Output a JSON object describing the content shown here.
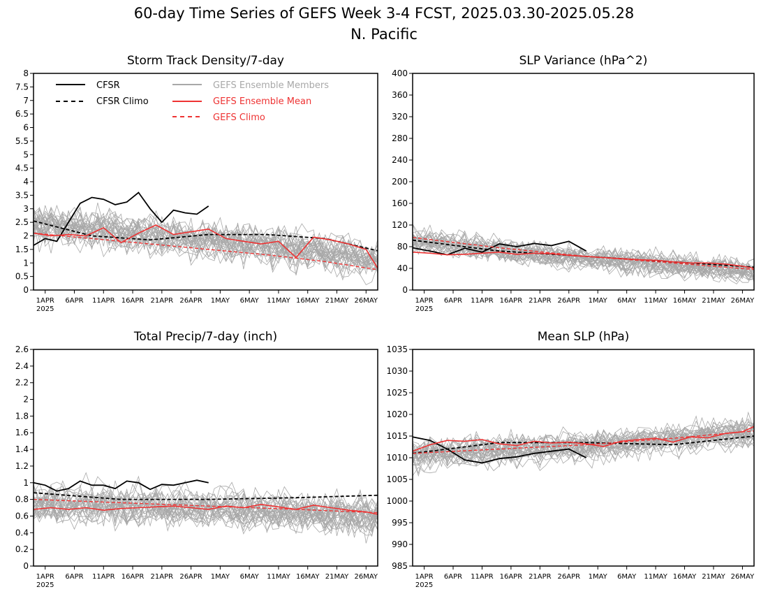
{
  "figure": {
    "title": "60-day Time Series of GEFS Week 3-4 FCST, 2025.03.30-2025.05.28",
    "subtitle": "N. Pacific"
  },
  "colors": {
    "cfsr": "#000000",
    "members": "#a8a8a8",
    "ens_mean": "#ee3333",
    "gefs_climo": "#ee3333"
  },
  "legend": {
    "cfsr": "CFSR",
    "cfsr_climo": "CFSR Climo",
    "members": "GEFS Ensemble Members",
    "ens_mean": "GEFS Ensemble Mean",
    "gefs_climo": "GEFS Climo"
  },
  "x_axis": {
    "ticks": [
      {
        "day": 2,
        "label": "1APR"
      },
      {
        "day": 7,
        "label": "6APR"
      },
      {
        "day": 12,
        "label": "11APR"
      },
      {
        "day": 17,
        "label": "16APR"
      },
      {
        "day": 22,
        "label": "21APR"
      },
      {
        "day": 27,
        "label": "26APR"
      },
      {
        "day": 32,
        "label": "1MAY"
      },
      {
        "day": 37,
        "label": "6MAY"
      },
      {
        "day": 42,
        "label": "11MAY"
      },
      {
        "day": 47,
        "label": "16MAY"
      },
      {
        "day": 52,
        "label": "21MAY"
      },
      {
        "day": 57,
        "label": "26MAY"
      }
    ],
    "year_label": "2025"
  },
  "chart_data": [
    {
      "type": "line",
      "title": "Storm Track Density/7-day",
      "ylim": [
        0,
        8
      ],
      "yticks": [
        "0",
        "0.5",
        "1",
        "1.5",
        "2",
        "2.5",
        "3",
        "3.5",
        "4",
        "4.5",
        "5",
        "5.5",
        "6",
        "6.5",
        "7",
        "7.5",
        "8"
      ],
      "x_range": [
        "2025-03-30",
        "2025-05-28"
      ],
      "member_band": {
        "center": 2.0,
        "spread": 0.9
      },
      "series": [
        {
          "name": "CFSR",
          "x_days": [
            0,
            2,
            4,
            6,
            8,
            10,
            12,
            14,
            16,
            18,
            20,
            22,
            24,
            26,
            28,
            30
          ],
          "values": [
            1.65,
            1.9,
            1.8,
            2.5,
            3.2,
            3.42,
            3.35,
            3.15,
            3.25,
            3.6,
            3.0,
            2.5,
            2.95,
            2.85,
            2.8,
            3.1
          ]
        },
        {
          "name": "CFSR Climo",
          "x_days": [
            0,
            10,
            20,
            30,
            40,
            50,
            59
          ],
          "values": [
            2.55,
            2.0,
            1.85,
            2.05,
            2.05,
            1.9,
            1.45
          ]
        },
        {
          "name": "GEFS Ensemble Mean",
          "x_days": [
            0,
            3,
            6,
            9,
            12,
            15,
            18,
            21,
            24,
            27,
            30,
            33,
            36,
            39,
            42,
            45,
            48,
            51,
            54,
            57,
            59
          ],
          "values": [
            2.1,
            2.0,
            2.05,
            2.0,
            2.3,
            1.75,
            2.1,
            2.4,
            2.05,
            2.15,
            2.25,
            1.9,
            1.8,
            1.7,
            1.8,
            1.2,
            1.95,
            1.85,
            1.7,
            1.5,
            0.8
          ]
        },
        {
          "name": "GEFS Climo",
          "x_days": [
            0,
            10,
            20,
            30,
            40,
            50,
            59
          ],
          "values": [
            2.1,
            1.9,
            1.7,
            1.5,
            1.3,
            1.05,
            0.75
          ]
        }
      ]
    },
    {
      "type": "line",
      "title": "SLP Variance (hPa^2)",
      "ylim": [
        0,
        400
      ],
      "yticks": [
        "0",
        "40",
        "80",
        "120",
        "160",
        "200",
        "240",
        "280",
        "320",
        "360",
        "400"
      ],
      "x_range": [
        "2025-03-30",
        "2025-05-28"
      ],
      "member_band": {
        "center": 60,
        "spread": 30
      },
      "series": [
        {
          "name": "CFSR",
          "x_days": [
            0,
            3,
            6,
            9,
            12,
            15,
            18,
            21,
            24,
            27,
            30
          ],
          "values": [
            78,
            72,
            65,
            77,
            70,
            85,
            80,
            86,
            82,
            90,
            72
          ]
        },
        {
          "name": "CFSR Climo",
          "x_days": [
            0,
            15,
            30,
            45,
            59
          ],
          "values": [
            92,
            72,
            62,
            52,
            42
          ]
        },
        {
          "name": "GEFS Ensemble Mean",
          "x_days": [
            0,
            3,
            6,
            9,
            12,
            15,
            18,
            21,
            24,
            27,
            30,
            33,
            36,
            39,
            42,
            45,
            48,
            51,
            54,
            57,
            59
          ],
          "values": [
            70,
            68,
            65,
            66,
            68,
            70,
            66,
            68,
            67,
            64,
            62,
            60,
            58,
            56,
            55,
            52,
            50,
            50,
            48,
            44,
            40
          ]
        },
        {
          "name": "GEFS Climo",
          "x_days": [
            0,
            15,
            30,
            45,
            59
          ],
          "values": [
            97,
            78,
            62,
            50,
            38
          ]
        }
      ]
    },
    {
      "type": "line",
      "title": "Total Precip/7-day (inch)",
      "ylim": [
        0,
        2.6
      ],
      "yticks": [
        "0",
        "0.2",
        "0.4",
        "0.6",
        "0.8",
        "1",
        "1.2",
        "1.4",
        "1.6",
        "1.8",
        "2",
        "2.2",
        "2.4",
        "2.6"
      ],
      "x_range": [
        "2025-03-30",
        "2025-05-28"
      ],
      "member_band": {
        "center": 0.68,
        "spread": 0.3
      },
      "series": [
        {
          "name": "CFSR",
          "x_days": [
            0,
            2,
            4,
            6,
            8,
            10,
            12,
            14,
            16,
            18,
            20,
            22,
            24,
            26,
            28,
            30
          ],
          "values": [
            1.0,
            0.97,
            0.9,
            0.93,
            1.02,
            0.97,
            0.97,
            0.93,
            1.02,
            1.0,
            0.92,
            0.98,
            0.97,
            1.0,
            1.03,
            1.0
          ]
        },
        {
          "name": "CFSR Climo",
          "x_days": [
            0,
            15,
            30,
            45,
            59
          ],
          "values": [
            0.88,
            0.8,
            0.8,
            0.82,
            0.85
          ]
        },
        {
          "name": "GEFS Ensemble Mean",
          "x_days": [
            0,
            3,
            6,
            9,
            12,
            15,
            18,
            21,
            24,
            27,
            30,
            33,
            36,
            39,
            42,
            45,
            48,
            51,
            54,
            57,
            59
          ],
          "values": [
            0.68,
            0.7,
            0.68,
            0.7,
            0.67,
            0.69,
            0.7,
            0.71,
            0.72,
            0.7,
            0.68,
            0.72,
            0.7,
            0.74,
            0.71,
            0.68,
            0.73,
            0.7,
            0.67,
            0.65,
            0.62
          ]
        },
        {
          "name": "GEFS Climo",
          "x_days": [
            0,
            15,
            30,
            45,
            59
          ],
          "values": [
            0.8,
            0.76,
            0.72,
            0.68,
            0.64
          ]
        }
      ]
    },
    {
      "type": "line",
      "title": "Mean SLP (hPa)",
      "ylim": [
        985,
        1035
      ],
      "yticks": [
        "985",
        "990",
        "995",
        "1000",
        "1005",
        "1010",
        "1015",
        "1020",
        "1025",
        "1030",
        "1035"
      ],
      "x_range": [
        "2025-03-30",
        "2025-05-28"
      ],
      "member_band": {
        "center": 1013,
        "spread": 4.5
      },
      "series": [
        {
          "name": "CFSR",
          "x_days": [
            0,
            3,
            6,
            9,
            12,
            15,
            18,
            21,
            24,
            27,
            30
          ],
          "values": [
            1014.8,
            1014.0,
            1012.0,
            1009.5,
            1008.8,
            1009.8,
            1010.2,
            1011.0,
            1011.5,
            1012.0,
            1010.0
          ]
        },
        {
          "name": "CFSR Climo",
          "x_days": [
            0,
            15,
            30,
            45,
            59
          ],
          "values": [
            1011.0,
            1013.5,
            1013.5,
            1013.0,
            1015.0
          ]
        },
        {
          "name": "GEFS Ensemble Mean",
          "x_days": [
            0,
            3,
            6,
            9,
            12,
            15,
            18,
            21,
            24,
            27,
            30,
            33,
            36,
            39,
            42,
            45,
            48,
            51,
            54,
            57,
            59
          ],
          "values": [
            1011.5,
            1013.0,
            1014.0,
            1013.8,
            1014.2,
            1013.2,
            1012.8,
            1013.8,
            1013.4,
            1013.6,
            1013.2,
            1012.6,
            1013.8,
            1014.2,
            1014.5,
            1013.6,
            1014.8,
            1014.6,
            1015.6,
            1016.0,
            1017.2
          ]
        },
        {
          "name": "GEFS Climo",
          "x_days": [
            0,
            15,
            30,
            45,
            59
          ],
          "values": [
            1011.0,
            1012.0,
            1013.0,
            1014.5,
            1016.2
          ]
        }
      ]
    }
  ]
}
